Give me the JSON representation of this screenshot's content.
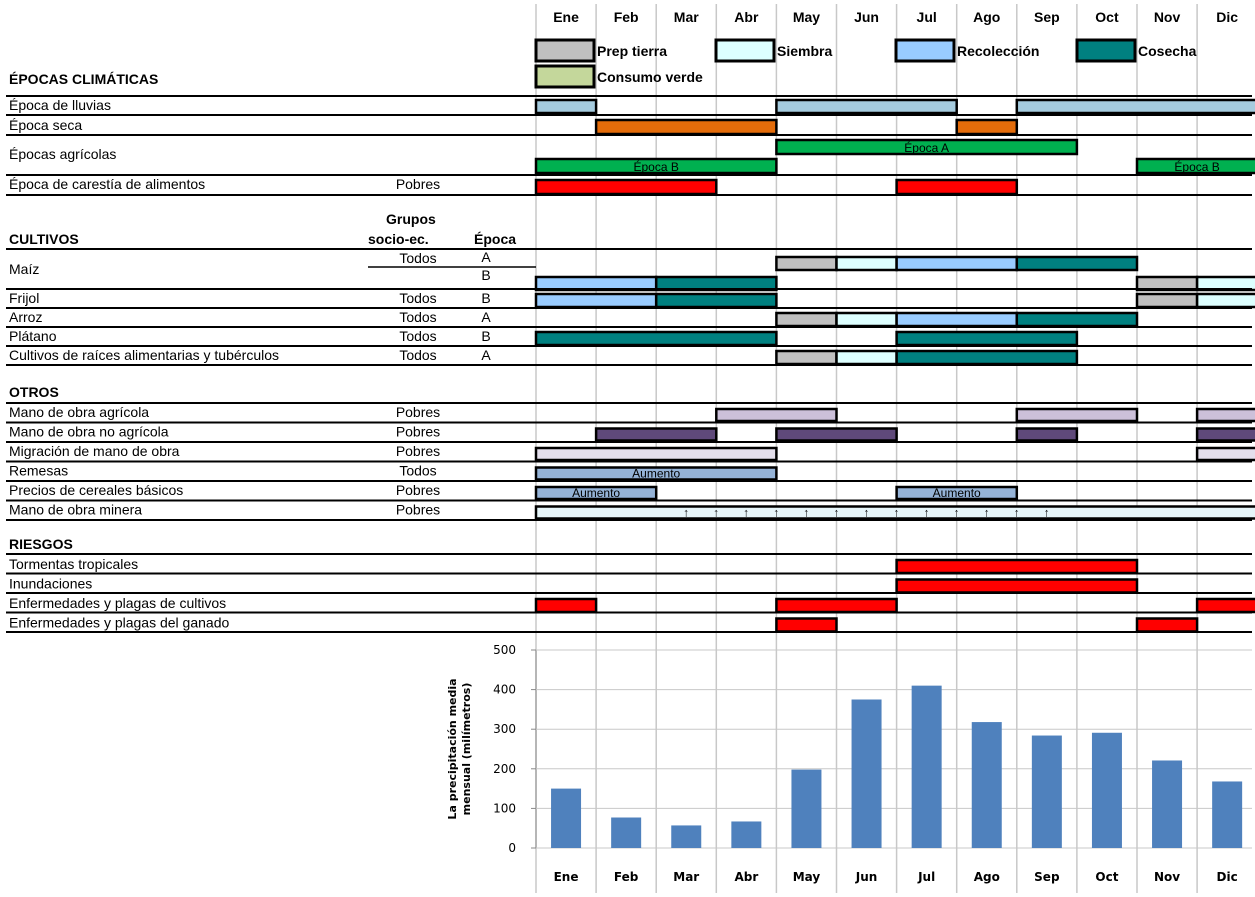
{
  "months": [
    "Ene",
    "Feb",
    "Mar",
    "Abr",
    "May",
    "Jun",
    "Jul",
    "Ago",
    "Sep",
    "Oct",
    "Nov",
    "Dic"
  ],
  "legend": [
    {
      "label": "Prep tierra",
      "color": "#c0c0c0"
    },
    {
      "label": "Siembra",
      "color": "#ddffff"
    },
    {
      "label": "Recolección",
      "color": "#99ccff"
    },
    {
      "label": "Cosecha",
      "color": "#008080"
    },
    {
      "label": "Consumo verde",
      "color": "#c4d79b"
    }
  ],
  "headers": {
    "climatic": "ÉPOCAS CLIMÁTICAS",
    "crops": "CULTIVOS",
    "group_line1": "Grupos",
    "group_line2": "socio-ec.",
    "epoca": "Época",
    "others": "OTROS",
    "risks": "RIESGOS"
  },
  "climatic_rows": [
    {
      "label": "Época de lluvias",
      "group": "",
      "bars": [
        {
          "start": 0,
          "end": 1,
          "color": "#a5cbde"
        },
        {
          "start": 4,
          "end": 7,
          "color": "#a5cbde"
        },
        {
          "start": 8,
          "end": 12,
          "color": "#a5cbde"
        }
      ]
    },
    {
      "label": "Época seca",
      "group": "",
      "bars": [
        {
          "start": 1,
          "end": 4,
          "color": "#e46c0a"
        },
        {
          "start": 7,
          "end": 8,
          "color": "#e46c0a"
        }
      ]
    },
    {
      "label": "Épocas agrícolas",
      "group": "",
      "bars": [
        {
          "start": 4,
          "end": 9,
          "color": "#00b050",
          "text": "Época A",
          "lane": "top"
        },
        {
          "start": 0,
          "end": 4,
          "color": "#00b050",
          "text": "Época B",
          "lane": "bottom"
        },
        {
          "start": 10,
          "end": 12,
          "color": "#00b050",
          "text": "Época B",
          "lane": "bottom"
        }
      ]
    },
    {
      "label": "Época de carestía de alimentos",
      "group": "Pobres",
      "bars": [
        {
          "start": 0,
          "end": 3,
          "color": "#ff0000"
        },
        {
          "start": 6,
          "end": 8,
          "color": "#ff0000"
        }
      ]
    }
  ],
  "crop_rows": [
    {
      "label": "Maíz",
      "group": "Todos",
      "epocas": [
        "A",
        "B"
      ],
      "lanes": [
        [
          {
            "start": 4,
            "end": 5,
            "color": "#c0c0c0"
          },
          {
            "start": 5,
            "end": 6,
            "color": "#ddffff"
          },
          {
            "start": 6,
            "end": 8,
            "color": "#99ccff"
          },
          {
            "start": 8,
            "end": 10,
            "color": "#008080"
          }
        ],
        [
          {
            "start": 0,
            "end": 2,
            "color": "#99ccff"
          },
          {
            "start": 2,
            "end": 4,
            "color": "#008080"
          },
          {
            "start": 10,
            "end": 11,
            "color": "#c0c0c0"
          },
          {
            "start": 11,
            "end": 12,
            "color": "#ddffff"
          }
        ]
      ]
    },
    {
      "label": "Frijol",
      "group": "Todos",
      "epocas": [
        "B"
      ],
      "lanes": [
        [
          {
            "start": 0,
            "end": 2,
            "color": "#99ccff"
          },
          {
            "start": 2,
            "end": 4,
            "color": "#008080"
          },
          {
            "start": 10,
            "end": 11,
            "color": "#c0c0c0"
          },
          {
            "start": 11,
            "end": 12,
            "color": "#ddffff"
          }
        ]
      ]
    },
    {
      "label": "Arroz",
      "group": "Todos",
      "epocas": [
        "A"
      ],
      "lanes": [
        [
          {
            "start": 4,
            "end": 5,
            "color": "#c0c0c0"
          },
          {
            "start": 5,
            "end": 6,
            "color": "#ddffff"
          },
          {
            "start": 6,
            "end": 8,
            "color": "#99ccff"
          },
          {
            "start": 8,
            "end": 10,
            "color": "#008080"
          }
        ]
      ]
    },
    {
      "label": "Plátano",
      "group": "Todos",
      "epocas": [
        "B"
      ],
      "lanes": [
        [
          {
            "start": 0,
            "end": 4,
            "color": "#008080"
          },
          {
            "start": 6,
            "end": 9,
            "color": "#008080"
          }
        ]
      ]
    },
    {
      "label": "Cultivos de raíces alimentarias y tubérculos",
      "group": "Todos",
      "epocas": [
        "A"
      ],
      "lanes": [
        [
          {
            "start": 4,
            "end": 5,
            "color": "#c0c0c0"
          },
          {
            "start": 5,
            "end": 6,
            "color": "#ddffff"
          },
          {
            "start": 6,
            "end": 9,
            "color": "#008080"
          }
        ]
      ]
    }
  ],
  "other_rows": [
    {
      "label": "Mano de obra agrícola",
      "group": "Pobres",
      "bars": [
        {
          "start": 3,
          "end": 5,
          "color": "#ccc0da"
        },
        {
          "start": 8,
          "end": 10,
          "color": "#ccc0da"
        },
        {
          "start": 11,
          "end": 12,
          "color": "#ccc0da"
        }
      ]
    },
    {
      "label": "Mano de obra no agrícola",
      "group": "Pobres",
      "bars": [
        {
          "start": 1,
          "end": 3,
          "color": "#5f497a"
        },
        {
          "start": 4,
          "end": 6,
          "color": "#5f497a"
        },
        {
          "start": 8,
          "end": 9,
          "color": "#5f497a"
        },
        {
          "start": 11,
          "end": 12,
          "color": "#5f497a"
        }
      ]
    },
    {
      "label": "Migración de mano de obra",
      "group": "Pobres",
      "bars": [
        {
          "start": 0,
          "end": 4,
          "color": "#e4dfec"
        },
        {
          "start": 11,
          "end": 12,
          "color": "#e4dfec"
        }
      ]
    },
    {
      "label": "Remesas",
      "group": "Todos",
      "bars": [
        {
          "start": 0,
          "end": 4,
          "color": "#95b3d7",
          "text": "Aumento"
        }
      ]
    },
    {
      "label": "Precios de cereales básicos",
      "group": "Pobres",
      "bars": [
        {
          "start": 0,
          "end": 2,
          "color": "#95b3d7",
          "text": "Aumento"
        },
        {
          "start": 6,
          "end": 8,
          "color": "#95b3d7",
          "text": "Aumento"
        }
      ]
    },
    {
      "label": "Mano de obra minera",
      "group": "Pobres",
      "arrows": "↑",
      "bars": [
        {
          "start": 0,
          "end": 12,
          "color": "#e6f5f9"
        }
      ]
    }
  ],
  "risk_rows": [
    {
      "label": "Tormentas tropicales",
      "group": "",
      "bars": [
        {
          "start": 6,
          "end": 10,
          "color": "#ff0000"
        }
      ]
    },
    {
      "label": "Inundaciones",
      "group": "",
      "bars": [
        {
          "start": 6,
          "end": 10,
          "color": "#ff0000"
        }
      ]
    },
    {
      "label": "Enfermedades y plagas de cultivos",
      "group": "",
      "bars": [
        {
          "start": 0,
          "end": 1,
          "color": "#ff0000"
        },
        {
          "start": 4,
          "end": 6,
          "color": "#ff0000"
        },
        {
          "start": 11,
          "end": 12,
          "color": "#ff0000"
        }
      ]
    },
    {
      "label": "Enfermedades y plagas del ganado",
      "group": "",
      "bars": [
        {
          "start": 4,
          "end": 5,
          "color": "#ff0000"
        },
        {
          "start": 10,
          "end": 11,
          "color": "#ff0000"
        }
      ]
    }
  ],
  "chart_data": {
    "type": "bar",
    "categories": [
      "Ene",
      "Feb",
      "Mar",
      "Abr",
      "May",
      "Jun",
      "Jul",
      "Ago",
      "Sep",
      "Oct",
      "Nov",
      "Dic"
    ],
    "values": [
      150,
      77,
      57,
      67,
      198,
      375,
      410,
      318,
      284,
      291,
      221,
      168
    ],
    "ylabel_line1": "La precipitación media",
    "ylabel_line2": "mensual (milímetros)",
    "ylim": [
      0,
      500
    ],
    "yticks": [
      0,
      100,
      200,
      300,
      400,
      500
    ],
    "color": "#4f81bd",
    "grid": true
  }
}
